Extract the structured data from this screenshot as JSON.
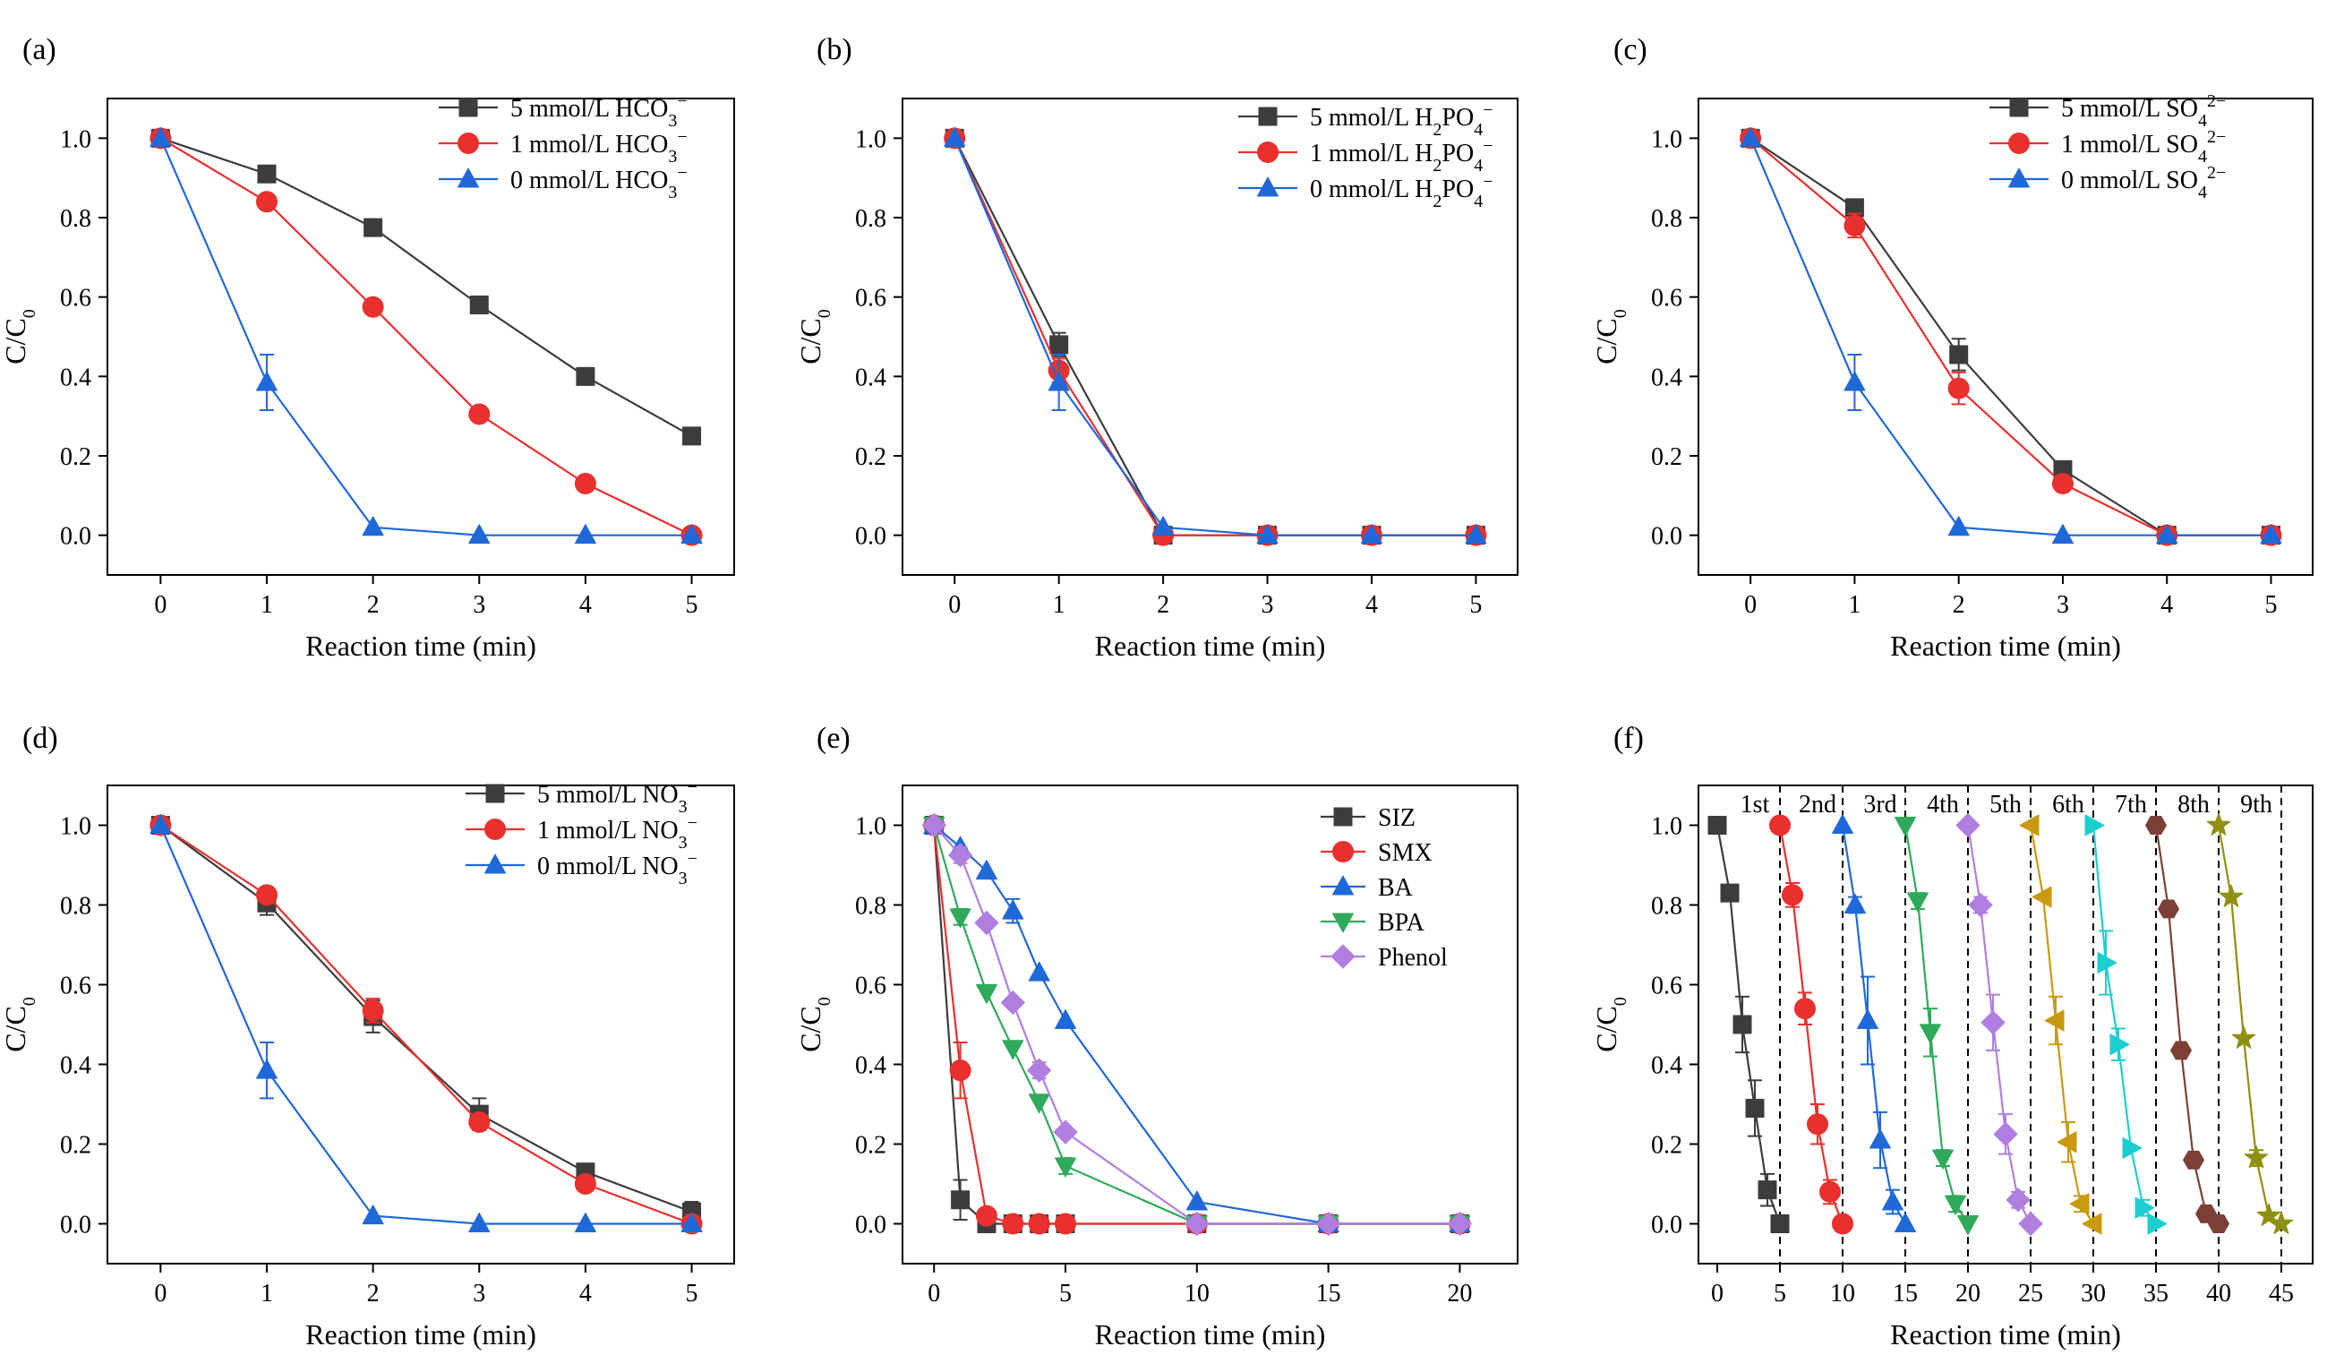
{
  "chart_data": [
    {
      "type": "line",
      "panel": "(a)",
      "xlabel": "Reaction time (min)",
      "ylabel": "C/C₀",
      "xlim": [
        -0.5,
        5.4
      ],
      "ylim": [
        -0.1,
        1.1
      ],
      "xticks": [
        0,
        1,
        2,
        3,
        4,
        5
      ],
      "xtick_labels": [
        "0",
        "1",
        "2",
        "3",
        "4",
        "5"
      ],
      "yticks": [
        0,
        0.2,
        0.4,
        0.6,
        0.8,
        1.0
      ],
      "ytick_labels": [
        "0.0",
        "0.2",
        "0.4",
        "0.6",
        "0.8",
        "1.0"
      ],
      "legend_position": "top-right",
      "series": [
        {
          "name": "5 mmol/L HCO₃⁻",
          "color": "#3c3c3c",
          "marker": "square",
          "x": [
            0,
            1,
            2,
            3,
            4,
            5
          ],
          "values": [
            1.0,
            0.91,
            0.775,
            0.58,
            0.4,
            0.25
          ],
          "err": [
            0,
            0,
            0,
            0,
            0,
            0
          ]
        },
        {
          "name": "1 mmol/L HCO₃⁻",
          "color": "#e8302e",
          "marker": "circle",
          "x": [
            0,
            1,
            2,
            3,
            4,
            5
          ],
          "values": [
            1.0,
            0.84,
            0.575,
            0.305,
            0.13,
            0.0
          ],
          "err": [
            0,
            0,
            0,
            0,
            0,
            0
          ]
        },
        {
          "name": "0 mmol/L HCO₃⁻",
          "color": "#1f68d8",
          "marker": "triangle-up",
          "x": [
            0,
            1,
            2,
            3,
            4,
            5
          ],
          "values": [
            1.0,
            0.385,
            0.02,
            0.0,
            0.0,
            0.0
          ],
          "err": [
            0,
            0.07,
            0,
            0,
            0,
            0
          ]
        }
      ]
    },
    {
      "type": "line",
      "panel": "(b)",
      "xlabel": "Reaction time (min)",
      "ylabel": "C/C₀",
      "xlim": [
        -0.5,
        5.4
      ],
      "ylim": [
        -0.1,
        1.1
      ],
      "xticks": [
        0,
        1,
        2,
        3,
        4,
        5
      ],
      "xtick_labels": [
        "0",
        "1",
        "2",
        "3",
        "4",
        "5"
      ],
      "yticks": [
        0,
        0.2,
        0.4,
        0.6,
        0.8,
        1.0
      ],
      "ytick_labels": [
        "0.0",
        "0.2",
        "0.4",
        "0.6",
        "0.8",
        "1.0"
      ],
      "legend_position": "top-right",
      "series": [
        {
          "name": "5 mmol/L H₂PO₄⁻",
          "color": "#3c3c3c",
          "marker": "square",
          "x": [
            0,
            1,
            2,
            3,
            4,
            5
          ],
          "values": [
            1.0,
            0.48,
            0.0,
            0.0,
            0.0,
            0.0
          ],
          "err": [
            0,
            0.03,
            0,
            0,
            0,
            0
          ]
        },
        {
          "name": "1 mmol/L H₂PO₄⁻",
          "color": "#e8302e",
          "marker": "circle",
          "x": [
            0,
            1,
            2,
            3,
            4,
            5
          ],
          "values": [
            1.0,
            0.415,
            0.0,
            0.0,
            0.0,
            0.0
          ],
          "err": [
            0,
            0.03,
            0,
            0,
            0,
            0
          ]
        },
        {
          "name": "0 mmol/L H₂PO₄⁻",
          "color": "#1f68d8",
          "marker": "triangle-up",
          "x": [
            0,
            1,
            2,
            3,
            4,
            5
          ],
          "values": [
            1.0,
            0.385,
            0.02,
            0.0,
            0.0,
            0.0
          ],
          "err": [
            0,
            0.07,
            0,
            0,
            0,
            0
          ]
        }
      ]
    },
    {
      "type": "line",
      "panel": "(c)",
      "xlabel": "Reaction time (min)",
      "ylabel": "C/C₀",
      "xlim": [
        -0.5,
        5.4
      ],
      "ylim": [
        -0.1,
        1.1
      ],
      "xticks": [
        0,
        1,
        2,
        3,
        4,
        5
      ],
      "xtick_labels": [
        "0",
        "1",
        "2",
        "3",
        "4",
        "5"
      ],
      "yticks": [
        0,
        0.2,
        0.4,
        0.6,
        0.8,
        1.0
      ],
      "ytick_labels": [
        "0.0",
        "0.2",
        "0.4",
        "0.6",
        "0.8",
        "1.0"
      ],
      "legend_position": "top-right",
      "series": [
        {
          "name": "5 mmol/L SO₄²⁻",
          "color": "#3c3c3c",
          "marker": "square",
          "x": [
            0,
            1,
            2,
            3,
            4,
            5
          ],
          "values": [
            1.0,
            0.825,
            0.455,
            0.165,
            0.0,
            0.0
          ],
          "err": [
            0,
            0.015,
            0.04,
            0,
            0,
            0
          ]
        },
        {
          "name": "1 mmol/L SO₄²⁻",
          "color": "#e8302e",
          "marker": "circle",
          "x": [
            0,
            1,
            2,
            3,
            4,
            5
          ],
          "values": [
            1.0,
            0.78,
            0.37,
            0.13,
            0.0,
            0.0
          ],
          "err": [
            0,
            0.03,
            0.04,
            0,
            0,
            0
          ]
        },
        {
          "name": "0 mmol/L SO₄²⁻",
          "color": "#1f68d8",
          "marker": "triangle-up",
          "x": [
            0,
            1,
            2,
            3,
            4,
            5
          ],
          "values": [
            1.0,
            0.385,
            0.02,
            0.0,
            0.0,
            0.0
          ],
          "err": [
            0,
            0.07,
            0,
            0,
            0,
            0
          ]
        }
      ]
    },
    {
      "type": "line",
      "panel": "(d)",
      "xlabel": "Reaction time (min)",
      "ylabel": "C/C₀",
      "xlim": [
        -0.5,
        5.4
      ],
      "ylim": [
        -0.1,
        1.1
      ],
      "xticks": [
        0,
        1,
        2,
        3,
        4,
        5
      ],
      "xtick_labels": [
        "0",
        "1",
        "2",
        "3",
        "4",
        "5"
      ],
      "yticks": [
        0,
        0.2,
        0.4,
        0.6,
        0.8,
        1.0
      ],
      "ytick_labels": [
        "0.0",
        "0.2",
        "0.4",
        "0.6",
        "0.8",
        "1.0"
      ],
      "legend_position": "top-right",
      "series": [
        {
          "name": "5 mmol/L NO₃⁻",
          "color": "#3c3c3c",
          "marker": "square",
          "x": [
            0,
            1,
            2,
            3,
            4,
            5
          ],
          "values": [
            1.0,
            0.805,
            0.52,
            0.275,
            0.13,
            0.03
          ],
          "err": [
            0,
            0.03,
            0.04,
            0.04,
            0,
            0.025
          ]
        },
        {
          "name": "1 mmol/L NO₃⁻",
          "color": "#e8302e",
          "marker": "circle",
          "x": [
            0,
            1,
            2,
            3,
            4,
            5
          ],
          "values": [
            1.0,
            0.825,
            0.535,
            0.255,
            0.1,
            0.0
          ],
          "err": [
            0,
            0,
            0.03,
            0,
            0,
            0
          ]
        },
        {
          "name": "0 mmol/L NO₃⁻",
          "color": "#1f68d8",
          "marker": "triangle-up",
          "x": [
            0,
            1,
            2,
            3,
            4,
            5
          ],
          "values": [
            1.0,
            0.385,
            0.02,
            0.0,
            0.0,
            0.0
          ],
          "err": [
            0,
            0.07,
            0,
            0,
            0,
            0
          ]
        }
      ]
    },
    {
      "type": "line",
      "panel": "(e)",
      "xlabel": "Reaction time (min)",
      "ylabel": "C/C₀",
      "xlim": [
        -1.2,
        22.2
      ],
      "ylim": [
        -0.1,
        1.1
      ],
      "xticks": [
        0,
        5,
        10,
        15,
        20
      ],
      "xtick_labels": [
        "0",
        "5",
        "10",
        "15",
        "20"
      ],
      "yticks": [
        0,
        0.2,
        0.4,
        0.6,
        0.8,
        1.0
      ],
      "ytick_labels": [
        "0.0",
        "0.2",
        "0.4",
        "0.6",
        "0.8",
        "1.0"
      ],
      "legend_position": "right",
      "series": [
        {
          "name": "SIZ",
          "color": "#3c3c3c",
          "marker": "square",
          "x": [
            0,
            1,
            2,
            3,
            4,
            5,
            10,
            15,
            20
          ],
          "values": [
            1.0,
            0.06,
            0.0,
            0.0,
            0.0,
            0.0,
            0.0,
            0.0,
            0.0
          ],
          "err": [
            0,
            0.05,
            0,
            0,
            0,
            0,
            0,
            0,
            0
          ]
        },
        {
          "name": "SMX",
          "color": "#e8302e",
          "marker": "circle",
          "x": [
            0,
            1,
            2,
            3,
            4,
            5,
            10,
            15,
            20
          ],
          "values": [
            1.0,
            0.385,
            0.02,
            0.0,
            0.0,
            0.0,
            0.0,
            0.0,
            0.0
          ],
          "err": [
            0,
            0.07,
            0,
            0,
            0,
            0,
            0,
            0,
            0
          ]
        },
        {
          "name": "BA",
          "color": "#1f68d8",
          "marker": "triangle-up",
          "x": [
            0,
            1,
            2,
            3,
            4,
            5,
            10,
            15,
            20
          ],
          "values": [
            1.0,
            0.945,
            0.885,
            0.785,
            0.63,
            0.51,
            0.055,
            0.0,
            0.0
          ],
          "err": [
            0,
            0,
            0,
            0.03,
            0,
            0,
            0,
            0,
            0
          ]
        },
        {
          "name": "BPA",
          "color": "#2eaa5a",
          "marker": "triangle-down",
          "x": [
            0,
            1,
            2,
            3,
            4,
            5,
            10,
            15,
            20
          ],
          "values": [
            1.0,
            0.77,
            0.58,
            0.44,
            0.305,
            0.145,
            0.0,
            0.0,
            0.0
          ],
          "err": [
            0,
            0.02,
            0,
            0,
            0,
            0.02,
            0,
            0,
            0
          ]
        },
        {
          "name": "Phenol",
          "color": "#b07ee0",
          "marker": "diamond",
          "x": [
            0,
            1,
            2,
            3,
            4,
            5,
            10,
            15,
            20
          ],
          "values": [
            1.0,
            0.925,
            0.755,
            0.555,
            0.385,
            0.23,
            0.0,
            0.0,
            0.0
          ],
          "err": [
            0,
            0.02,
            0,
            0,
            0.02,
            0,
            0,
            0,
            0
          ]
        }
      ]
    },
    {
      "type": "line",
      "panel": "(f)",
      "xlabel": "Reaction time (min)",
      "ylabel": "C/C₀",
      "xlim": [
        -1.5,
        47.5
      ],
      "ylim": [
        -0.1,
        1.1
      ],
      "xticks": [
        0,
        5,
        10,
        15,
        20,
        25,
        30,
        35,
        40,
        45
      ],
      "xtick_labels": [
        "0",
        "5",
        "10",
        "15",
        "20",
        "25",
        "30",
        "35",
        "40",
        "45"
      ],
      "yticks": [
        0,
        0.2,
        0.4,
        0.6,
        0.8,
        1.0
      ],
      "ytick_labels": [
        "0.0",
        "0.2",
        "0.4",
        "0.6",
        "0.8",
        "1.0"
      ],
      "cycle_lines": [
        5,
        10,
        15,
        20,
        25,
        30,
        35,
        40,
        45
      ],
      "cycle_labels": [
        "1st",
        "2nd",
        "3rd",
        "4th",
        "5th",
        "6th",
        "7th",
        "8th",
        "9th"
      ],
      "series": [
        {
          "name": "1st",
          "color": "#3c3c3c",
          "marker": "square",
          "x": [
            0,
            1,
            2,
            3,
            4,
            5
          ],
          "values": [
            1.0,
            0.83,
            0.5,
            0.29,
            0.085,
            0.0
          ],
          "err": [
            0,
            0,
            0.07,
            0.07,
            0.04,
            0
          ]
        },
        {
          "name": "2nd",
          "color": "#e8302e",
          "marker": "circle",
          "x": [
            5,
            6,
            7,
            8,
            9,
            10
          ],
          "values": [
            1.0,
            0.825,
            0.54,
            0.25,
            0.08,
            0.0
          ],
          "err": [
            0,
            0.03,
            0.04,
            0.05,
            0.03,
            0
          ]
        },
        {
          "name": "3rd",
          "color": "#1f68d8",
          "marker": "triangle-up",
          "x": [
            10,
            11,
            12,
            13,
            14,
            15
          ],
          "values": [
            1.0,
            0.8,
            0.51,
            0.21,
            0.055,
            0.0
          ],
          "err": [
            0,
            0.02,
            0.11,
            0.07,
            0.03,
            0
          ]
        },
        {
          "name": "4th",
          "color": "#2eaa5a",
          "marker": "triangle-down",
          "x": [
            15,
            16,
            17,
            18,
            19,
            20
          ],
          "values": [
            1.0,
            0.81,
            0.48,
            0.165,
            0.05,
            0.0
          ],
          "err": [
            0,
            0.02,
            0.06,
            0.02,
            0.02,
            0
          ]
        },
        {
          "name": "5th",
          "color": "#b07ee0",
          "marker": "diamond",
          "x": [
            20,
            21,
            22,
            23,
            24,
            25
          ],
          "values": [
            1.0,
            0.8,
            0.505,
            0.225,
            0.06,
            0.0
          ],
          "err": [
            0,
            0.02,
            0.07,
            0.05,
            0.02,
            0
          ]
        },
        {
          "name": "6th",
          "color": "#c99a10",
          "marker": "triangle-left",
          "x": [
            25,
            26,
            27,
            28,
            29,
            30
          ],
          "values": [
            1.0,
            0.82,
            0.51,
            0.205,
            0.05,
            0.0
          ],
          "err": [
            0,
            0,
            0.06,
            0.05,
            0.02,
            0
          ]
        },
        {
          "name": "7th",
          "color": "#1ccfcf",
          "marker": "triangle-right",
          "x": [
            30,
            31,
            32,
            33,
            34,
            35
          ],
          "values": [
            1.0,
            0.655,
            0.45,
            0.19,
            0.04,
            0.0
          ],
          "err": [
            0,
            0.08,
            0.04,
            0,
            0.02,
            0
          ]
        },
        {
          "name": "8th",
          "color": "#7b3f35",
          "marker": "hexagon",
          "x": [
            35,
            36,
            37,
            38,
            39,
            40
          ],
          "values": [
            1.0,
            0.79,
            0.435,
            0.16,
            0.025,
            0.0
          ],
          "err": [
            0,
            0,
            0,
            0,
            0,
            0
          ]
        },
        {
          "name": "9th",
          "color": "#8f8f12",
          "marker": "star",
          "x": [
            40,
            41,
            42,
            43,
            44,
            45
          ],
          "values": [
            1.0,
            0.82,
            0.465,
            0.165,
            0.02,
            0.0
          ],
          "err": [
            0,
            0,
            0,
            0.02,
            0,
            0
          ]
        }
      ]
    }
  ]
}
